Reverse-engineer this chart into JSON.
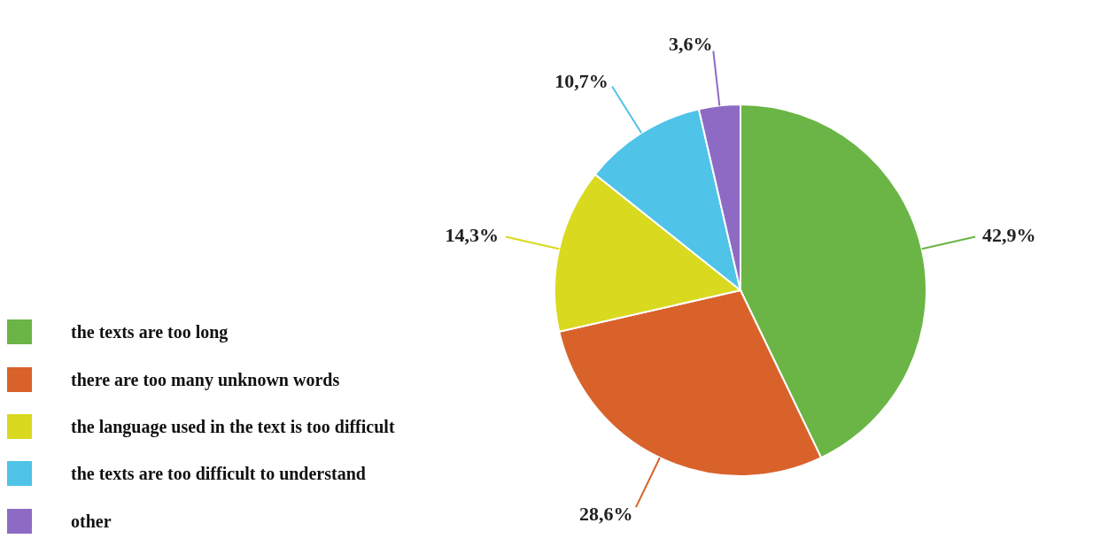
{
  "chart_data": {
    "type": "pie",
    "categories": [
      "the texts are too long",
      "there are too many  unknown words",
      "the language used in the text is too difficult",
      "the texts are too difficult to understand",
      "other"
    ],
    "values": [
      42.9,
      28.6,
      14.3,
      10.7,
      3.6
    ],
    "value_labels": [
      "42,9%",
      "28,6%",
      "14,3%",
      "10,7%",
      "3,6%"
    ],
    "colors": [
      "#6ab545",
      "#d9622b",
      "#d9d91f",
      "#4fc3e8",
      "#8d6bc4"
    ],
    "legend": "bottom left"
  }
}
